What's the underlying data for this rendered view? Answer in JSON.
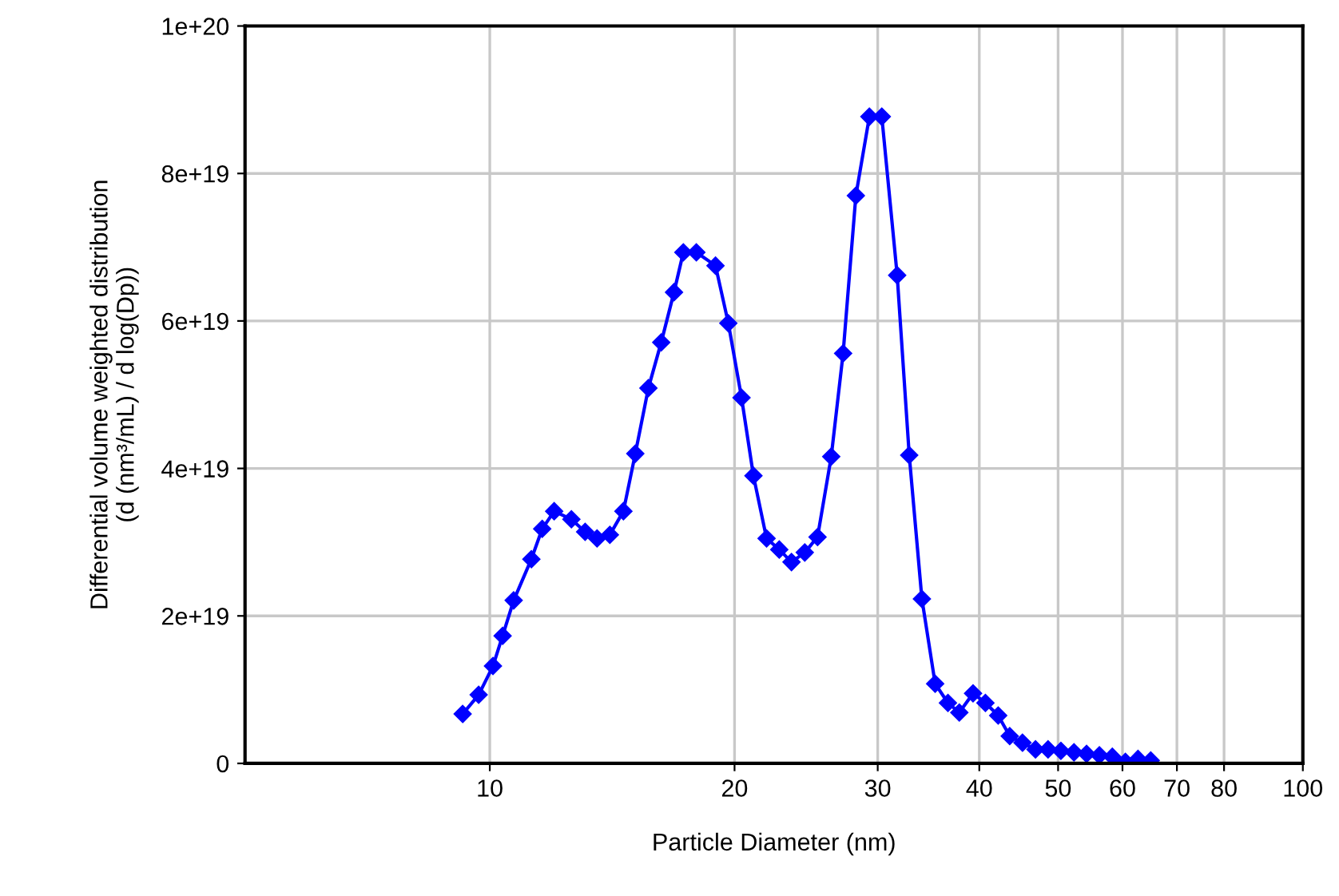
{
  "chart_data": {
    "type": "line",
    "xlabel": "Particle Diameter (nm)",
    "ylabel": "Differential volume weighted distribution\n(d (nm³/mL) / d log(Dp))",
    "log": "x",
    "grid": true,
    "marker": "diamond",
    "line_style": "solid",
    "xlim": [
      5,
      100
    ],
    "xticks": [
      10,
      20,
      30,
      40,
      50,
      60,
      70,
      80,
      100
    ],
    "ylim": [
      0,
      1e+20
    ],
    "yticks": [
      {
        "value": 0,
        "label": "0"
      },
      {
        "value": 2e+19,
        "label": "2e+19"
      },
      {
        "value": 4e+19,
        "label": "4e+19"
      },
      {
        "value": 6e+19,
        "label": "6e+19"
      },
      {
        "value": 8e+19,
        "label": "8e+19"
      },
      {
        "value": 1e+20,
        "label": "1e+20"
      }
    ],
    "series": [
      {
        "color": "#0000ff",
        "x": [
          9.26,
          9.69,
          10.09,
          10.37,
          10.7,
          11.25,
          11.6,
          12.0,
          12.6,
          13.1,
          13.55,
          14.05,
          14.6,
          15.1,
          15.67,
          16.25,
          16.85,
          17.3,
          17.95,
          18.95,
          19.65,
          20.4,
          21.1,
          21.9,
          22.7,
          23.5,
          24.4,
          25.3,
          26.3,
          27.2,
          28.2,
          29.3,
          30.35,
          31.7,
          32.8,
          34.0,
          35.3,
          36.6,
          37.8,
          39.3,
          40.7,
          42.2,
          43.6,
          45.2,
          46.9,
          48.6,
          50.4,
          52.3,
          54.2,
          56.2,
          58.3,
          60.5,
          62.7,
          65.0
        ],
        "values": [
          6.7e+18,
          9.3e+18,
          1.32e+19,
          1.73e+19,
          2.21e+19,
          2.77e+19,
          3.18e+19,
          3.42e+19,
          3.31e+19,
          3.14e+19,
          3.05e+19,
          3.1e+19,
          3.42e+19,
          4.2e+19,
          5.09e+19,
          5.71e+19,
          6.39e+19,
          6.93e+19,
          6.93e+19,
          6.75e+19,
          5.97e+19,
          4.96e+19,
          3.9e+19,
          3.05e+19,
          2.9e+19,
          2.73e+19,
          2.86e+19,
          3.07e+19,
          4.16e+19,
          5.56e+19,
          7.7e+19,
          8.77e+19,
          8.77e+19,
          6.62e+19,
          4.18e+19,
          2.23e+19,
          1.08e+19,
          8.2e+18,
          6.9e+18,
          9.5e+18,
          8.2e+18,
          6.5e+18,
          3.7e+18,
          2.8e+18,
          1.9e+18,
          1.9e+18,
          1.7e+18,
          1.5e+18,
          1.3e+18,
          1.1e+18,
          9e+17,
          2e+17,
          6e+17,
          4e+17
        ]
      }
    ]
  }
}
